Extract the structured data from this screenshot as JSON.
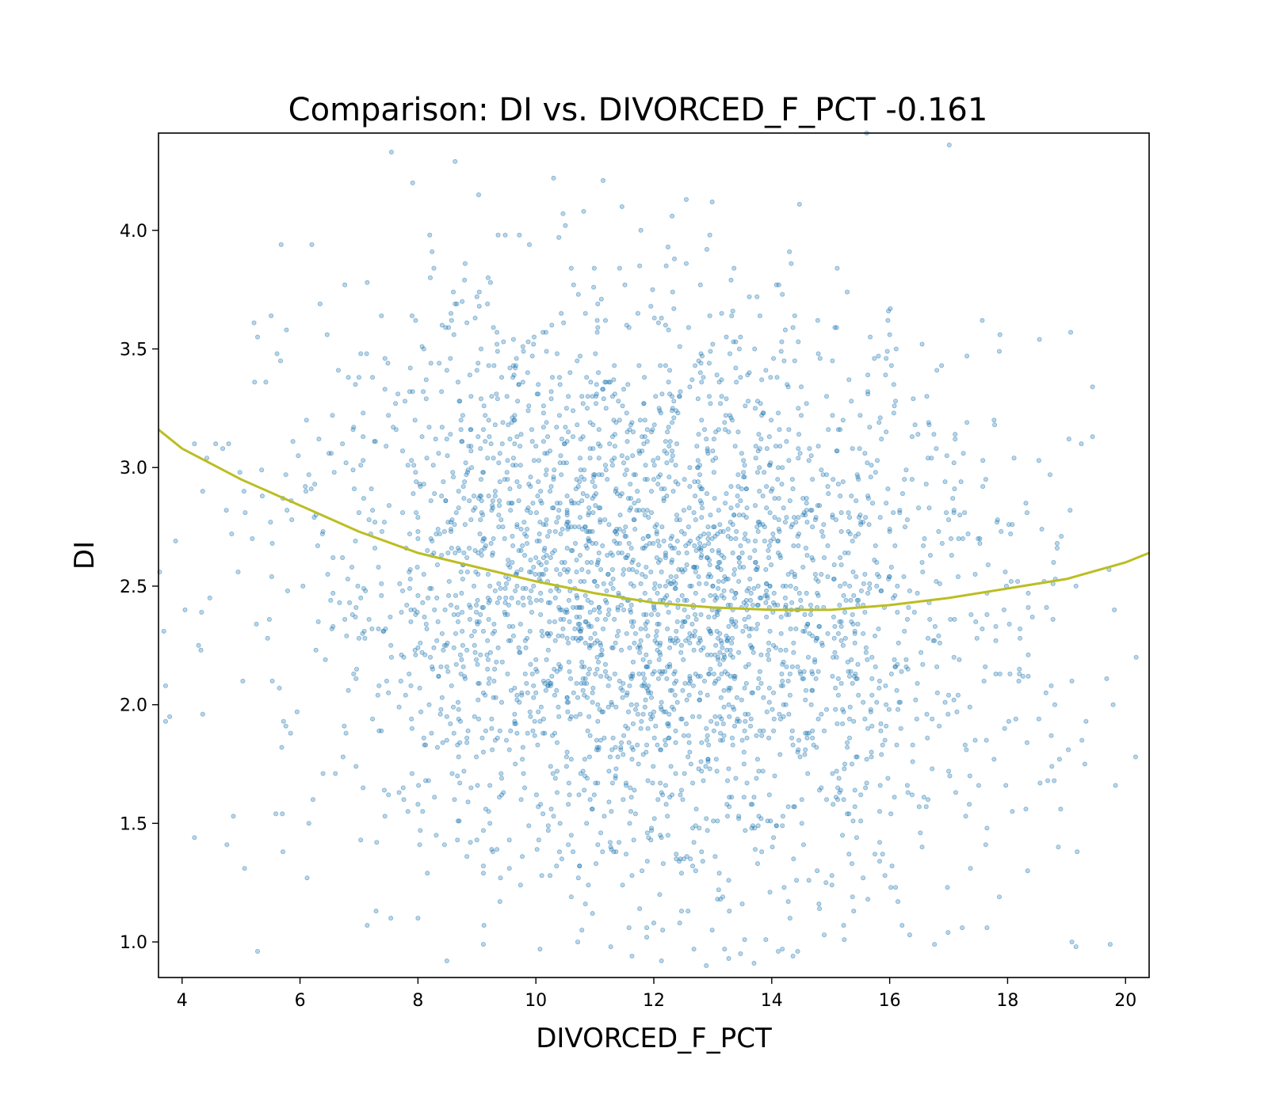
{
  "chart_data": {
    "type": "scatter",
    "title": "Comparison:  DI  vs.  DIVORCED_F_PCT  -0.161",
    "xlabel": "DIVORCED_F_PCT",
    "ylabel": "DI",
    "xlim": [
      3.6,
      20.4
    ],
    "ylim": [
      0.85,
      4.41
    ],
    "xticks": [
      4,
      6,
      8,
      10,
      12,
      14,
      16,
      18,
      20
    ],
    "yticks": [
      1.0,
      1.5,
      2.0,
      2.5,
      3.0,
      3.5,
      4.0
    ],
    "grid": false,
    "point_color": "#1f77b4",
    "point_opacity": 0.3,
    "trend_color": "#bcbd22",
    "trend": {
      "x": [
        3.6,
        4.0,
        5.0,
        6.0,
        7.0,
        8.0,
        9.0,
        10.0,
        11.0,
        12.0,
        13.0,
        14.0,
        15.0,
        16.0,
        17.0,
        18.0,
        19.0,
        20.0,
        20.4
      ],
      "y": [
        3.16,
        3.08,
        2.95,
        2.84,
        2.73,
        2.64,
        2.58,
        2.52,
        2.47,
        2.43,
        2.41,
        2.4,
        2.4,
        2.42,
        2.45,
        2.49,
        2.53,
        2.6,
        2.64
      ]
    },
    "points": {
      "x": [],
      "y": []
    }
  }
}
